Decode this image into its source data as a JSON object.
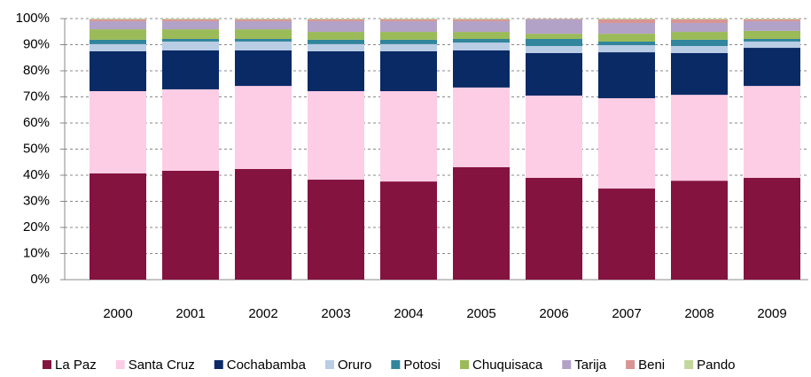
{
  "chart_data": {
    "type": "stacked_bar_100",
    "categories": [
      "2000",
      "2001",
      "2002",
      "2003",
      "2004",
      "2005",
      "2006",
      "2007",
      "2008",
      "2009"
    ],
    "series": [
      {
        "name": "La Paz",
        "color": "#84133f",
        "values": [
          40.7,
          41.7,
          42.4,
          38.3,
          37.6,
          43.1,
          39.0,
          34.9,
          37.9,
          39.0
        ]
      },
      {
        "name": "Santa Cruz",
        "color": "#fccde5",
        "values": [
          31.5,
          31.2,
          31.8,
          33.9,
          34.6,
          30.5,
          31.5,
          34.6,
          32.9,
          35.2
        ]
      },
      {
        "name": "Cochabamba",
        "color": "#0a2a66",
        "values": [
          15.3,
          14.9,
          13.6,
          15.3,
          15.3,
          14.2,
          16.3,
          17.6,
          16.0,
          14.6
        ]
      },
      {
        "name": "Oruro",
        "color": "#b9cde5",
        "values": [
          2.7,
          3.4,
          3.4,
          2.7,
          2.7,
          3.0,
          2.7,
          2.7,
          2.7,
          2.4
        ]
      },
      {
        "name": "Potosi",
        "color": "#31859c",
        "values": [
          1.7,
          1.0,
          1.0,
          1.7,
          1.7,
          1.4,
          2.7,
          1.4,
          2.4,
          1.0
        ]
      },
      {
        "name": "Chuquisaca",
        "color": "#9bbb59",
        "values": [
          4.0,
          3.7,
          3.7,
          3.0,
          3.0,
          2.7,
          2.0,
          3.0,
          3.0,
          3.1
        ]
      },
      {
        "name": "Tarija",
        "color": "#b3a2c7",
        "values": [
          3.1,
          3.1,
          3.1,
          4.1,
          4.1,
          4.1,
          5.5,
          4.1,
          3.4,
          3.7
        ]
      },
      {
        "name": "Beni",
        "color": "#d99594",
        "values": [
          0.7,
          0.7,
          0.7,
          0.7,
          0.7,
          0.7,
          0.2,
          1.4,
          1.4,
          0.7
        ]
      },
      {
        "name": "Pando",
        "color": "#c3d69b",
        "values": [
          0.3,
          0.3,
          0.3,
          0.3,
          0.3,
          0.3,
          0.1,
          0.3,
          0.3,
          0.3
        ]
      }
    ],
    "ylim": [
      0,
      100
    ],
    "yticks": [
      {
        "value": 0,
        "label": "0%"
      },
      {
        "value": 10,
        "label": "10%"
      },
      {
        "value": 20,
        "label": "20%"
      },
      {
        "value": 30,
        "label": "30%"
      },
      {
        "value": 40,
        "label": "40%"
      },
      {
        "value": 50,
        "label": "50%"
      },
      {
        "value": 60,
        "label": "60%"
      },
      {
        "value": 70,
        "label": "70%"
      },
      {
        "value": 80,
        "label": "80%"
      },
      {
        "value": 90,
        "label": "90%"
      },
      {
        "value": 100,
        "label": "100%"
      }
    ],
    "grid": true,
    "legend": "bottom"
  }
}
